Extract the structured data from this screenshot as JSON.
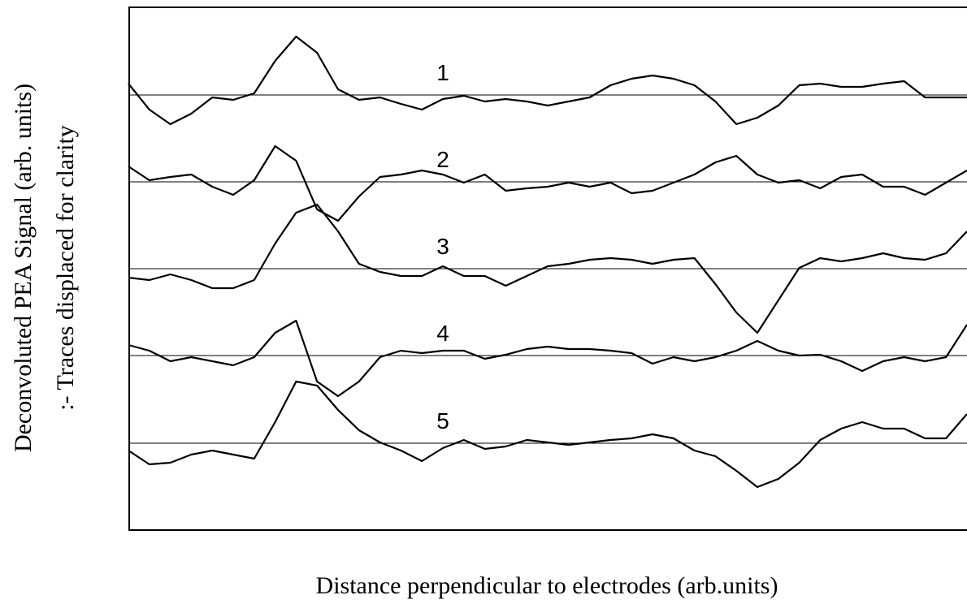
{
  "chart_data": {
    "type": "line",
    "ylabel": [
      "Deconvoluted  PEA Signal (arb. units)",
      ":- Traces displaced  for clarity"
    ],
    "xlabel": "Distance perpendicular to electrodes (arb.units)",
    "xlim": [
      0,
      100
    ],
    "ylim": [
      0,
      645
    ],
    "x": [
      0,
      2.5,
      5,
      7.5,
      10,
      12.5,
      15,
      17.5,
      20,
      22.5,
      25,
      27.5,
      30,
      32.5,
      35,
      37.5,
      40,
      42.5,
      45,
      47.5,
      50,
      52.5,
      55,
      57.5,
      60,
      62.5,
      65,
      67.5,
      70,
      72.5,
      75,
      77.5,
      80,
      82.5,
      85,
      87.5,
      90,
      92.5,
      95,
      97.5,
      100
    ],
    "baselines": [
      536,
      429,
      322,
      215,
      107
    ],
    "series": [
      {
        "name": "1",
        "color": "#000000",
        "values": [
          550,
          518,
          500,
          513,
          533,
          530,
          538,
          578,
          608,
          588,
          543,
          530,
          533,
          525,
          518,
          531,
          535,
          528,
          531,
          528,
          523,
          528,
          533,
          548,
          556,
          560,
          556,
          548,
          528,
          500,
          508,
          523,
          548,
          550,
          546,
          546,
          550,
          553,
          533,
          533,
          533
        ]
      },
      {
        "name": "2",
        "color": "#000000",
        "values": [
          448,
          431,
          435,
          438,
          423,
          413,
          431,
          473,
          455,
          395,
          381,
          411,
          435,
          438,
          443,
          438,
          428,
          438,
          418,
          421,
          423,
          428,
          423,
          428,
          415,
          418,
          428,
          438,
          453,
          461,
          438,
          428,
          431,
          421,
          435,
          438,
          423,
          423,
          413,
          428,
          443
        ]
      },
      {
        "name": "3",
        "color": "#000000",
        "values": [
          311,
          308,
          315,
          308,
          298,
          298,
          308,
          353,
          391,
          401,
          368,
          328,
          318,
          313,
          313,
          325,
          313,
          313,
          301,
          313,
          325,
          328,
          333,
          335,
          333,
          328,
          333,
          335,
          303,
          268,
          243,
          283,
          323,
          335,
          331,
          335,
          341,
          335,
          333,
          341,
          368
        ]
      },
      {
        "name": "4",
        "color": "#000000",
        "values": [
          228,
          221,
          208,
          213,
          208,
          203,
          213,
          243,
          258,
          183,
          165,
          183,
          213,
          221,
          218,
          221,
          221,
          211,
          216,
          223,
          226,
          223,
          223,
          221,
          218,
          205,
          213,
          208,
          213,
          221,
          233,
          221,
          215,
          216,
          208,
          196,
          208,
          213,
          208,
          213,
          253
        ]
      },
      {
        "name": "5",
        "color": "#000000",
        "values": [
          98,
          81,
          83,
          93,
          98,
          93,
          88,
          133,
          183,
          178,
          148,
          123,
          108,
          98,
          85,
          101,
          111,
          100,
          103,
          111,
          108,
          105,
          108,
          111,
          113,
          118,
          113,
          98,
          91,
          73,
          53,
          63,
          83,
          111,
          125,
          133,
          125,
          125,
          113,
          113,
          143
        ]
      }
    ]
  }
}
